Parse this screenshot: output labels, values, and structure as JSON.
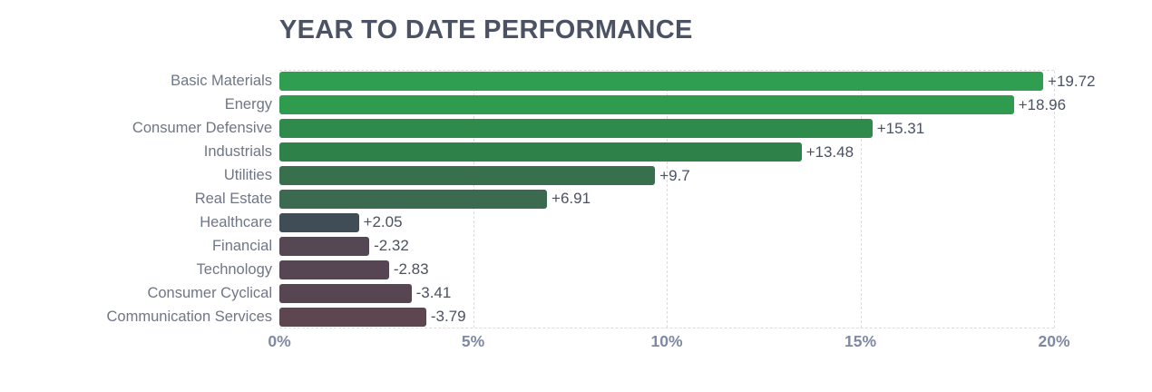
{
  "title": "YEAR TO DATE PERFORMANCE",
  "palette": {
    "title_color": "#4a5264",
    "category_label_color": "#6e7687",
    "value_label_color": "#4a5263",
    "tick_label_color": "#7f89a3",
    "grid_color": "#d9dce3",
    "background": "#ffffff"
  },
  "chart_data": {
    "type": "bar",
    "orientation": "horizontal",
    "title": "YEAR TO DATE PERFORMANCE",
    "xlabel": "",
    "ylabel": "",
    "xlim": [
      0,
      20
    ],
    "grid": "dashed-vertical",
    "legend": "none",
    "note_negative_bars": "negative values drawn rightward from 0 at absolute length",
    "categories": [
      "Basic Materials",
      "Energy",
      "Consumer Defensive",
      "Industrials",
      "Utilities",
      "Real Estate",
      "Healthcare",
      "Financial",
      "Technology",
      "Consumer Cyclical",
      "Communication Services"
    ],
    "values": [
      19.72,
      18.96,
      15.31,
      13.48,
      9.7,
      6.91,
      2.05,
      -2.32,
      -2.83,
      -3.41,
      -3.79
    ],
    "value_labels": [
      "+19.72",
      "+18.96",
      "+15.31",
      "+13.48",
      "+9.7",
      "+6.91",
      "+2.05",
      "-2.32",
      "-2.83",
      "-3.41",
      "-3.79"
    ],
    "bar_colors": [
      "#2f9e50",
      "#2f9b4f",
      "#2e8b4b",
      "#2f814a",
      "#38704d",
      "#3b6a50",
      "#404d57",
      "#564754",
      "#564653",
      "#574651",
      "#5e4650"
    ],
    "x_ticks": [
      {
        "label": "0%",
        "value": 0
      },
      {
        "label": "5%",
        "value": 5
      },
      {
        "label": "10%",
        "value": 10
      },
      {
        "label": "15%",
        "value": 15
      },
      {
        "label": "20%",
        "value": 20
      }
    ]
  }
}
